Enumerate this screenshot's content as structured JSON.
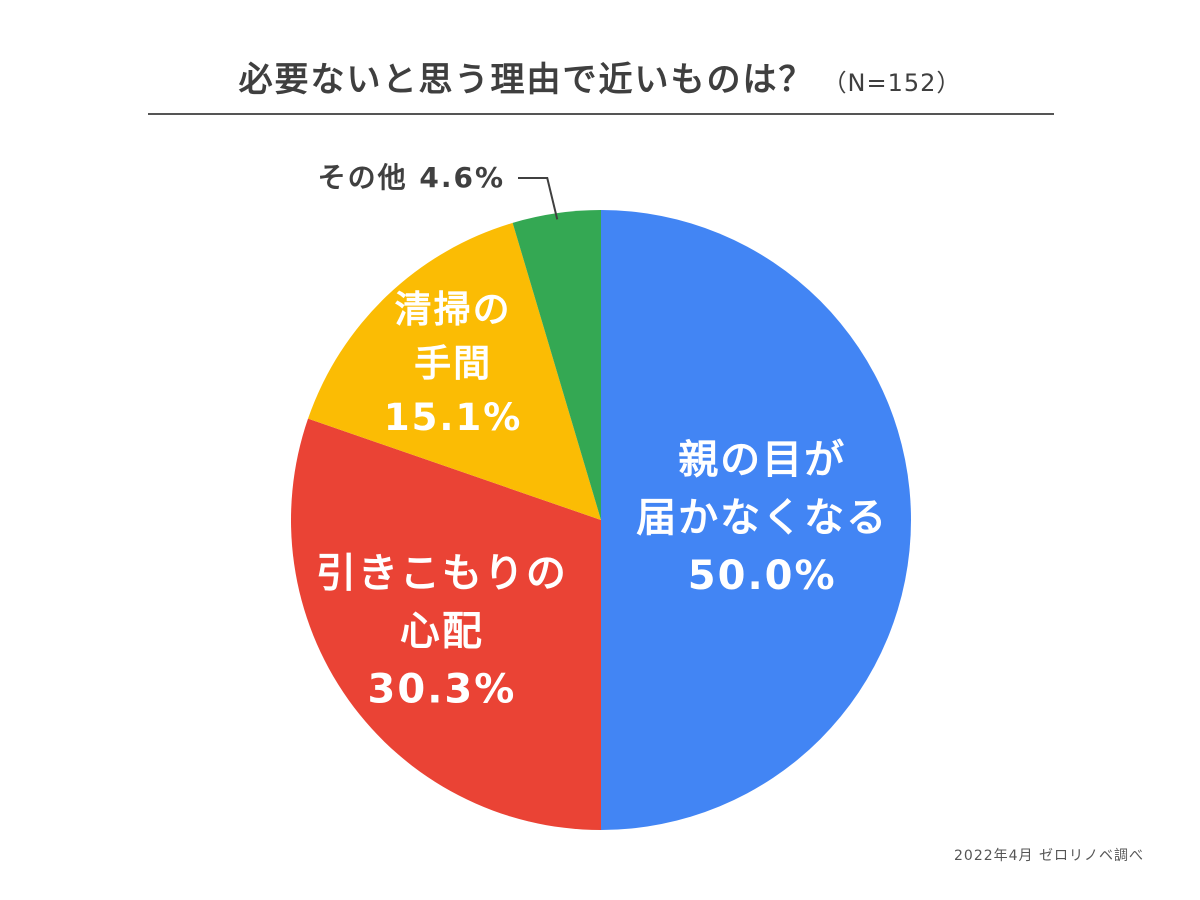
{
  "title": "必要ないと思う理由で近いものは？",
  "sample_size": "（N=152）",
  "credit": "2022年4月 ゼロリノベ調べ",
  "chart_data": {
    "type": "pie",
    "title": "必要ないと思う理由で近いものは？",
    "slices": [
      {
        "name": "親の目が届かなくなる",
        "label_lines": [
          "親の目が",
          "届かなくなる"
        ],
        "value": 50.0,
        "value_label": "50.0%",
        "color": "#4285f4"
      },
      {
        "name": "引きこもりの心配",
        "label_lines": [
          "引きこもりの",
          "心配"
        ],
        "value": 30.3,
        "value_label": "30.3%",
        "color": "#ea4335"
      },
      {
        "name": "清掃の手間",
        "label_lines": [
          "清掃の",
          "手間"
        ],
        "value": 15.1,
        "value_label": "15.1%",
        "color": "#fbbc04"
      },
      {
        "name": "その他",
        "label_lines": [
          "その他"
        ],
        "value": 4.6,
        "value_label": "4.6%",
        "color": "#34a853"
      }
    ]
  }
}
